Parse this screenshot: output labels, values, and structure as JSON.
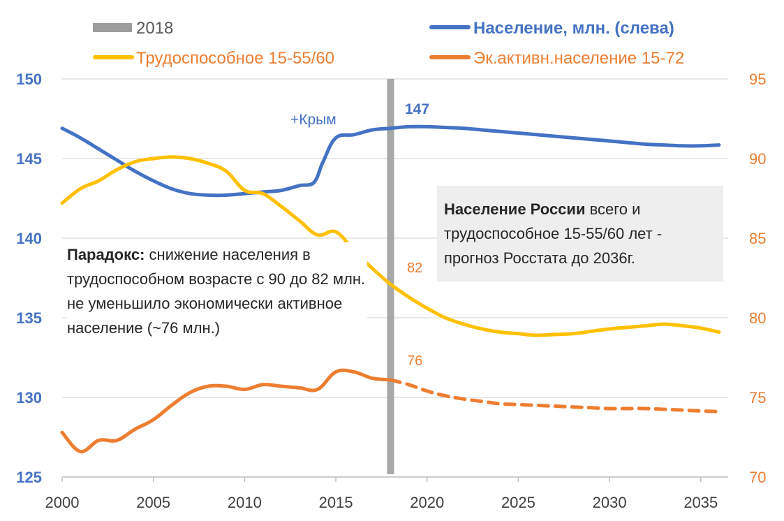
{
  "colors": {
    "population": "#4472C4",
    "working_age": "#FFC000",
    "econ_active": "#ED7D31",
    "marker_2018": "#9E9E9E",
    "grid": "#d9d9d9"
  },
  "legend": {
    "marker_2018": "2018",
    "population": "Население, млн. (слева)",
    "working_age": "Трудоспособное 15-55/60",
    "econ_active": "Эк.активн.население 15-72"
  },
  "annotations": {
    "crimea": "+Крым",
    "pop_2018": "147",
    "working_2018": "82",
    "active_2018": "76",
    "paradox_bold": "Парадокс:",
    "paradox_text": "снижение населения в трудоспособном возрасте с 90 до 82 млн. не уменьшило экономически активное население (~76 млн.)",
    "russia_bold": "Население России",
    "russia_text": "всего и трудоспособное 15-55/60 лет - прогноз Росстата до 2036г."
  },
  "chart_data": {
    "type": "line",
    "x_ticks": [
      2000,
      2005,
      2010,
      2015,
      2020,
      2025,
      2030,
      2035
    ],
    "xlim": [
      2000,
      2036.5
    ],
    "y_left": {
      "ticks": [
        125,
        130,
        135,
        140,
        145,
        150
      ],
      "ylim": [
        125,
        150
      ]
    },
    "y_right": {
      "ticks": [
        70,
        75,
        80,
        85,
        90,
        95
      ],
      "ylim": [
        70,
        95
      ]
    },
    "grid": true,
    "marker_year": 2018,
    "series": [
      {
        "name": "Население, млн. (слева)",
        "axis": "left",
        "style": "solid",
        "x": [
          2000,
          2001,
          2002,
          2003,
          2004,
          2005,
          2006,
          2007,
          2008,
          2009,
          2010,
          2011,
          2012,
          2013,
          2013.8,
          2014.3,
          2015,
          2016,
          2017,
          2018,
          2019,
          2020,
          2021,
          2022,
          2023,
          2024,
          2025,
          2026,
          2027,
          2028,
          2029,
          2030,
          2031,
          2032,
          2033,
          2034,
          2035,
          2036
        ],
        "values": [
          146.9,
          146.3,
          145.6,
          144.9,
          144.2,
          143.6,
          143.1,
          142.8,
          142.7,
          142.7,
          142.8,
          142.9,
          143.0,
          143.3,
          143.5,
          144.8,
          146.3,
          146.5,
          146.8,
          146.9,
          147.0,
          147.0,
          146.95,
          146.9,
          146.8,
          146.7,
          146.6,
          146.5,
          146.4,
          146.3,
          146.2,
          146.1,
          146.0,
          145.9,
          145.85,
          145.8,
          145.8,
          145.85
        ]
      },
      {
        "name": "Трудоспособное 15-55/60",
        "axis": "right",
        "style": "solid",
        "x": [
          2000,
          2001,
          2002,
          2003,
          2004,
          2005,
          2006,
          2007,
          2008,
          2009,
          2010,
          2011,
          2012,
          2013,
          2014,
          2015,
          2016,
          2017,
          2018,
          2019,
          2020,
          2021,
          2022,
          2023,
          2024,
          2025,
          2026,
          2027,
          2028,
          2029,
          2030,
          2031,
          2032,
          2033,
          2034,
          2035,
          2036
        ],
        "values": [
          87.2,
          88.1,
          88.6,
          89.3,
          89.8,
          90.0,
          90.1,
          90.0,
          89.7,
          89.2,
          88.0,
          87.8,
          87.0,
          86.1,
          85.2,
          85.4,
          84.2,
          83.1,
          82.1,
          81.3,
          80.6,
          80.0,
          79.6,
          79.3,
          79.1,
          79.0,
          78.9,
          78.95,
          79.0,
          79.15,
          79.3,
          79.4,
          79.5,
          79.6,
          79.5,
          79.35,
          79.1
        ]
      },
      {
        "name": "Эк.активн.население 15-72",
        "axis": "right",
        "style": "solid",
        "x": [
          2000,
          2001,
          2002,
          2003,
          2004,
          2005,
          2006,
          2007,
          2008,
          2009,
          2010,
          2011,
          2012,
          2013,
          2014,
          2015,
          2016,
          2017,
          2018
        ],
        "values": [
          72.8,
          71.6,
          72.3,
          72.3,
          73.0,
          73.6,
          74.5,
          75.3,
          75.7,
          75.7,
          75.5,
          75.8,
          75.7,
          75.6,
          75.5,
          76.6,
          76.6,
          76.2,
          76.1
        ]
      },
      {
        "name": "Эк.активн.население 15-72 (прогноз)",
        "axis": "right",
        "style": "dashed",
        "x": [
          2018,
          2019,
          2020,
          2021,
          2022,
          2023,
          2024,
          2025,
          2026,
          2027,
          2028,
          2029,
          2030,
          2031,
          2032,
          2033,
          2034,
          2035,
          2036
        ],
        "values": [
          76.1,
          75.8,
          75.4,
          75.1,
          74.9,
          74.75,
          74.6,
          74.55,
          74.5,
          74.45,
          74.4,
          74.35,
          74.3,
          74.3,
          74.3,
          74.25,
          74.2,
          74.15,
          74.1
        ]
      }
    ]
  }
}
